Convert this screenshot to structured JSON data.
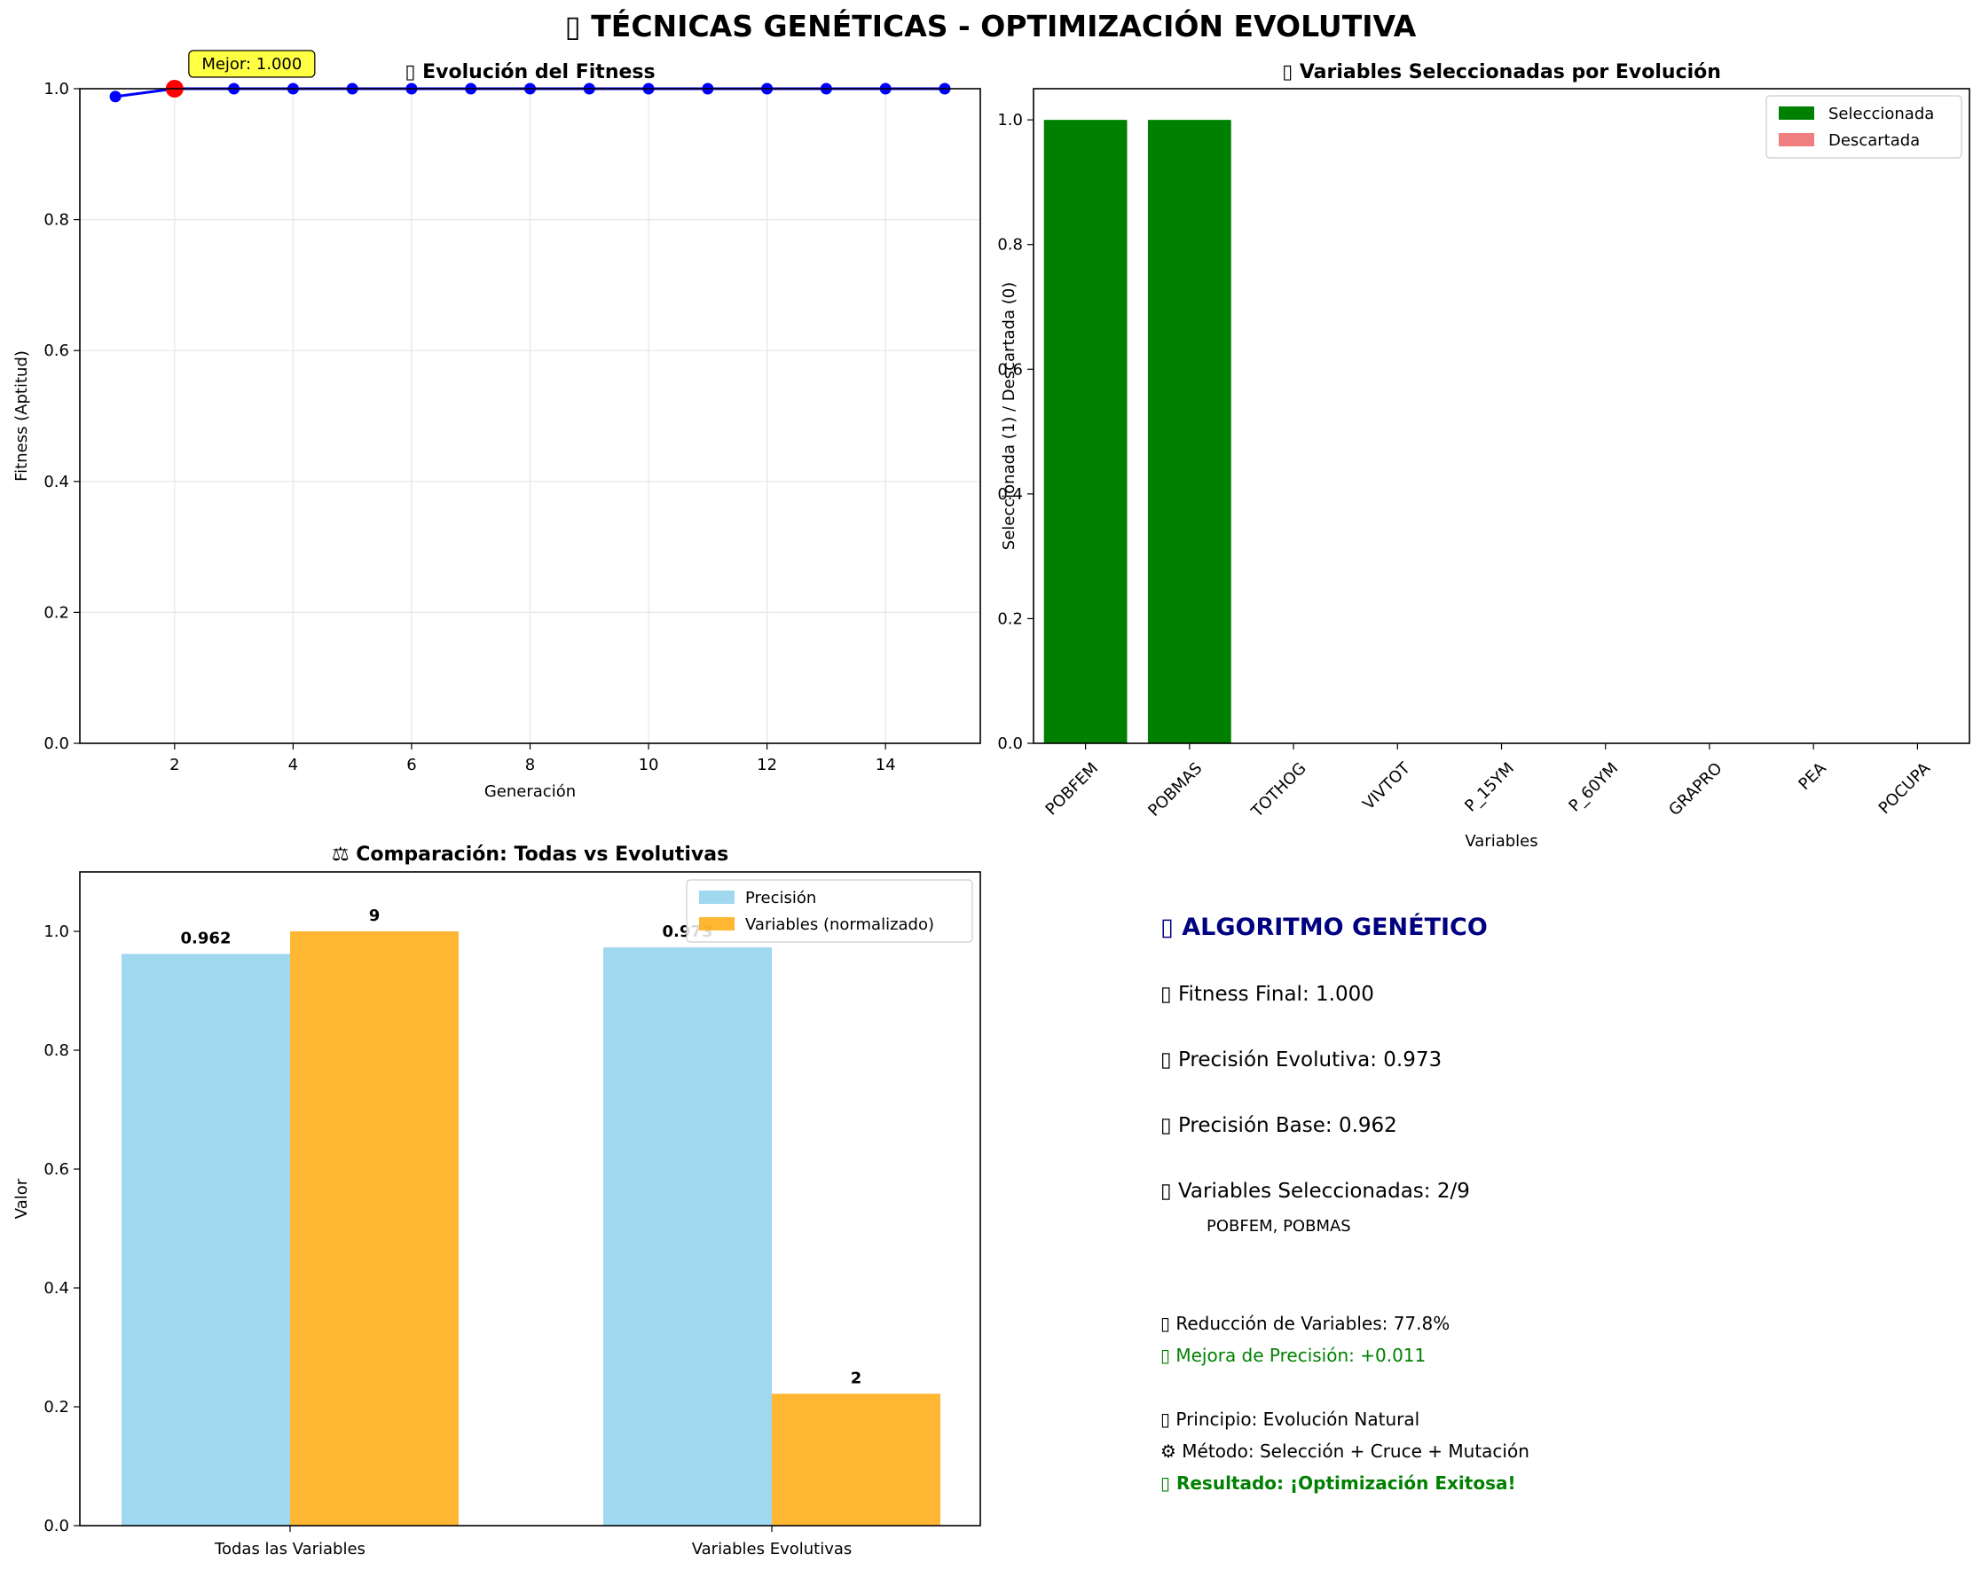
{
  "main_title": "▯ TÉCNICAS GENÉTICAS - OPTIMIZACIÓN EVOLUTIVA",
  "colors": {
    "fitness_line": "#0000ff",
    "best_point": "#ff0000",
    "annotation_bg": "#ffff44",
    "selected": "#008000",
    "discarded": "#f08080",
    "precision": "#87ceeb",
    "variables": "#ffa500",
    "info_title": "#000080",
    "info_green": "#008000"
  },
  "chart_data": [
    {
      "id": "fitness",
      "type": "line",
      "title": "▯ Evolución del Fitness",
      "xlabel": "Generación",
      "ylabel": "Fitness (Aptitud)",
      "xlim": [
        0.4,
        15.6
      ],
      "ylim": [
        0,
        1
      ],
      "xticks": [
        2,
        4,
        6,
        8,
        10,
        12,
        14
      ],
      "yticks": [
        0.0,
        0.2,
        0.4,
        0.6,
        0.8,
        1.0
      ],
      "x": [
        1,
        2,
        3,
        4,
        5,
        6,
        7,
        8,
        9,
        10,
        11,
        12,
        13,
        14,
        15
      ],
      "y": [
        0.988,
        1.0,
        1.0,
        1.0,
        1.0,
        1.0,
        1.0,
        1.0,
        1.0,
        1.0,
        1.0,
        1.0,
        1.0,
        1.0,
        1.0
      ],
      "best": {
        "x": 2,
        "y": 1.0,
        "label": "Mejor: 1.000"
      },
      "grid": true
    },
    {
      "id": "selection",
      "type": "bar",
      "title": "▯ Variables Seleccionadas por Evolución",
      "xlabel": "Variables",
      "ylabel": "Seleccionada (1) / Descartada (0)",
      "categories": [
        "POBFEM",
        "POBMAS",
        "TOTHOG",
        "VIVTOT",
        "P_15YM",
        "P_60YM",
        "GRAPRO",
        "PEA",
        "POCUPA"
      ],
      "values": [
        1,
        1,
        0,
        0,
        0,
        0,
        0,
        0,
        0
      ],
      "ylim": [
        0,
        1.05
      ],
      "yticks": [
        0.0,
        0.2,
        0.4,
        0.6,
        0.8,
        1.0
      ],
      "legend": [
        {
          "label": "Seleccionada",
          "color": "#008000"
        },
        {
          "label": "Descartada",
          "color": "#f08080"
        }
      ],
      "legend_position": "top-right",
      "grid": false
    },
    {
      "id": "comparison",
      "type": "bar",
      "title": "⚖ Comparación: Todas vs Evolutivas",
      "xlabel": "",
      "ylabel": "Valor",
      "categories": [
        "Todas las Variables",
        "Variables Evolutivas"
      ],
      "series": [
        {
          "name": "Precisión",
          "values": [
            0.962,
            0.973
          ],
          "labels": [
            "0.962",
            "0.973"
          ],
          "color": "#87ceeb"
        },
        {
          "name": "Variables (normalizado)",
          "values": [
            1.0,
            0.222
          ],
          "labels": [
            "9",
            "2"
          ],
          "color": "#ffa500"
        }
      ],
      "ylim": [
        0,
        1.1
      ],
      "yticks": [
        0.0,
        0.2,
        0.4,
        0.6,
        0.8,
        1.0
      ],
      "legend_position": "top-right",
      "grid": false
    }
  ],
  "info": {
    "title": "▯ ALGORITMO GENÉTICO",
    "fitness_final": "▯ Fitness Final: 1.000",
    "precision_evolutiva": "▯ Precisión Evolutiva: 0.973",
    "precision_base": "▯ Precisión Base: 0.962",
    "variables_seleccionadas": "▯ Variables Seleccionadas: 2/9",
    "variables_list": "POBFEM, POBMAS",
    "reduccion": "▯ Reducción de Variables: 77.8%",
    "mejora": "▯ Mejora de Precisión: +0.011",
    "principio": "▯ Principio: Evolución Natural",
    "metodo": "⚙ Método: Selección + Cruce + Mutación",
    "resultado": "▯ Resultado: ¡Optimización Exitosa!"
  }
}
